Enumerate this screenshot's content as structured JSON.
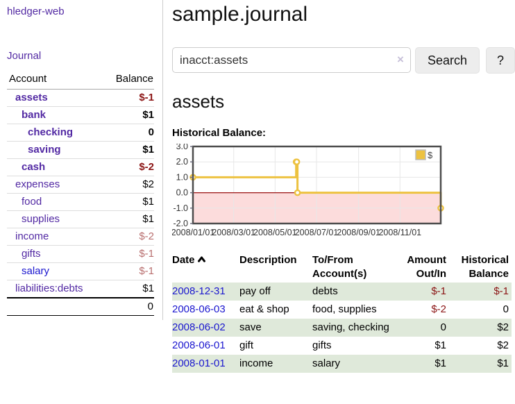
{
  "sidebar": {
    "brand": "hledger-web",
    "nav_journal": "Journal",
    "headers": {
      "account": "Account",
      "balance": "Balance"
    },
    "accounts": [
      {
        "name": "assets",
        "level": 1,
        "bold": true,
        "link_color": "purple",
        "balance": "$-1",
        "balance_class": "neg-strong"
      },
      {
        "name": "bank",
        "level": 2,
        "bold": true,
        "link_color": "purple",
        "balance": "$1",
        "balance_class": "plain"
      },
      {
        "name": "checking",
        "level": 3,
        "bold": true,
        "link_color": "purple",
        "balance": "0",
        "balance_class": "plain"
      },
      {
        "name": "saving",
        "level": 3,
        "bold": true,
        "link_color": "purple",
        "balance": "$1",
        "balance_class": "plain"
      },
      {
        "name": "cash",
        "level": 2,
        "bold": true,
        "link_color": "purple",
        "balance": "$-2",
        "balance_class": "neg-strong"
      },
      {
        "name": "expenses",
        "level": 1,
        "bold": false,
        "link_color": "purple",
        "balance": "$2",
        "balance_class": "plain"
      },
      {
        "name": "food",
        "level": 2,
        "bold": false,
        "link_color": "purple",
        "balance": "$1",
        "balance_class": "plain"
      },
      {
        "name": "supplies",
        "level": 2,
        "bold": false,
        "link_color": "purple",
        "balance": "$1",
        "balance_class": "plain"
      },
      {
        "name": "income",
        "level": 1,
        "bold": false,
        "link_color": "purple",
        "balance": "$-2",
        "balance_class": "neg-light"
      },
      {
        "name": "gifts",
        "level": 2,
        "bold": false,
        "link_color": "purple",
        "balance": "$-1",
        "balance_class": "neg-light"
      },
      {
        "name": "salary",
        "level": 2,
        "bold": false,
        "link_color": "blue",
        "balance": "$-1",
        "balance_class": "neg-light"
      },
      {
        "name": "liabilities:debts",
        "level": 1,
        "bold": false,
        "link_color": "purple",
        "balance": "$1",
        "balance_class": "plain"
      }
    ],
    "total": "0"
  },
  "header": {
    "title": "sample.journal"
  },
  "search": {
    "value": "inacct:assets",
    "clear_label": "×",
    "button_label": "Search",
    "help_label": "?"
  },
  "account_page": {
    "heading": "assets",
    "chart_title": "Historical Balance:"
  },
  "chart_data": {
    "type": "line",
    "step": true,
    "title": "Historical Balance:",
    "series": [
      {
        "name": "$",
        "dates": [
          "2008/01/01",
          "2008/06/01",
          "2008/06/02",
          "2008/06/03",
          "2008/12/31"
        ],
        "x_days": [
          0,
          152,
          153,
          154,
          365
        ],
        "values": [
          1.0,
          2.0,
          2.0,
          0.0,
          -1.0
        ]
      }
    ],
    "x_ticks": [
      {
        "day": 0,
        "label": "2008/01/01"
      },
      {
        "day": 60,
        "label": "2008/03/01"
      },
      {
        "day": 121,
        "label": "2008/05/01"
      },
      {
        "day": 182,
        "label": "2008/07/01"
      },
      {
        "day": 244,
        "label": "2008/09/01"
      },
      {
        "day": 305,
        "label": "2008/11/01"
      }
    ],
    "y_ticks": [
      3.0,
      2.0,
      1.0,
      0.0,
      -1.0,
      -2.0
    ],
    "y_tick_labels": [
      "3.0",
      "2.0",
      "1.0",
      "0.0",
      "-1.0",
      "-2.0"
    ],
    "ylim": [
      -2,
      3
    ],
    "xlim_days": [
      0,
      365
    ],
    "legend_position": "top-right",
    "grid": true,
    "colors": {
      "line": "#edc240",
      "point_fill": "#ffffff",
      "negative_fill": "#fcdcdc",
      "zero_line": "#991111",
      "grid": "#e7e7e7",
      "border": "#4d4d4d"
    }
  },
  "register": {
    "headers": {
      "date": "Date",
      "description": "Description",
      "tofrom_line1": "To/From",
      "tofrom_line2": "Account(s)",
      "amount_line1": "Amount",
      "amount_line2": "Out/In",
      "historical_line1": "Historical",
      "historical_line2": "Balance"
    },
    "rows": [
      {
        "date": "2008-12-31",
        "description": "pay off",
        "accounts": "debts",
        "amount": "$-1",
        "amount_class": "neg",
        "balance": "$-1",
        "balance_class": "neg"
      },
      {
        "date": "2008-06-03",
        "description": "eat & shop",
        "accounts": "food, supplies",
        "amount": "$-2",
        "amount_class": "neg",
        "balance": "0",
        "balance_class": "plain"
      },
      {
        "date": "2008-06-02",
        "description": "save",
        "accounts": "saving, checking",
        "amount": "0",
        "amount_class": "plain",
        "balance": "$2",
        "balance_class": "plain"
      },
      {
        "date": "2008-06-01",
        "description": "gift",
        "accounts": "gifts",
        "amount": "$1",
        "amount_class": "plain",
        "balance": "$2",
        "balance_class": "plain"
      },
      {
        "date": "2008-01-01",
        "description": "income",
        "accounts": "salary",
        "amount": "$1",
        "amount_class": "plain",
        "balance": "$1",
        "balance_class": "plain"
      }
    ]
  },
  "colors": {
    "purple": "#5229a3",
    "blue": "#1a16cf",
    "neg_strong": "#8b1414",
    "neg_light": "#b86e6e",
    "green_row": "#dfe9da"
  }
}
